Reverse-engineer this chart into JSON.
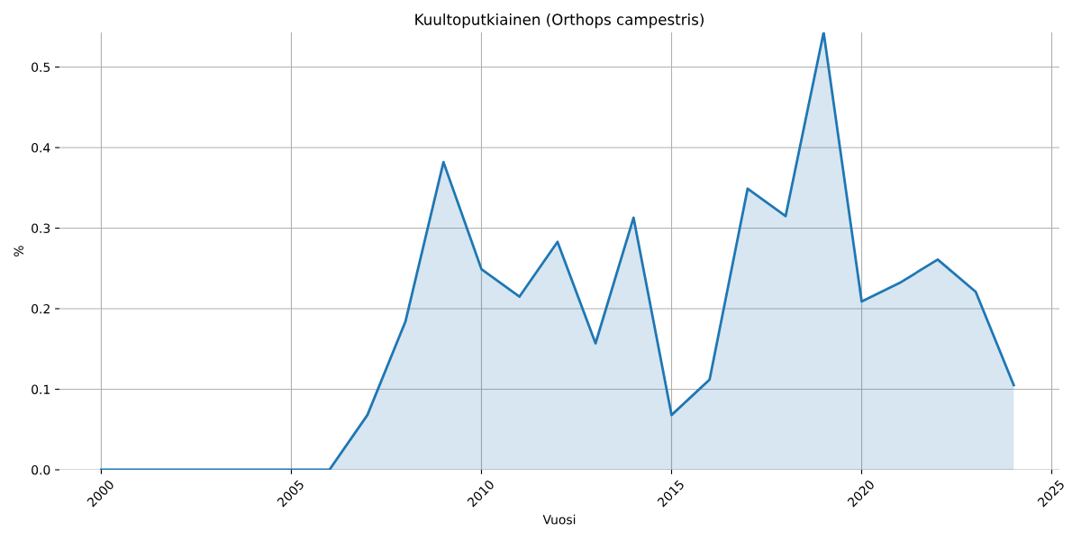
{
  "chart_data": {
    "type": "area",
    "title": "Kuultoputkiainen (Orthops campestris)",
    "xlabel": "Vuosi",
    "ylabel": "%",
    "x": [
      2000,
      2001,
      2002,
      2003,
      2004,
      2005,
      2006,
      2007,
      2008,
      2009,
      2010,
      2011,
      2012,
      2013,
      2014,
      2015,
      2016,
      2017,
      2018,
      2019,
      2020,
      2021,
      2022,
      2023,
      2024
    ],
    "series": [
      {
        "color": "#1f77b4",
        "values": [
          0,
          0,
          0,
          0,
          0,
          0,
          0,
          0.068,
          0.184,
          0.382,
          0.249,
          0.215,
          0.283,
          0.157,
          0.313,
          0.068,
          0.112,
          0.349,
          0.315,
          0.543,
          0.209,
          0.232,
          0.261,
          0.221,
          0.105
        ]
      }
    ],
    "xlim": [
      1998.9,
      2025.2
    ],
    "ylim": [
      0,
      0.543
    ],
    "xticks": [
      2000,
      2005,
      2010,
      2015,
      2020,
      2025
    ],
    "yticks": [
      {
        "value": 0,
        "label": "0.0"
      },
      0.1,
      0.2,
      0.3,
      0.4,
      0.5
    ],
    "grid": true
  }
}
